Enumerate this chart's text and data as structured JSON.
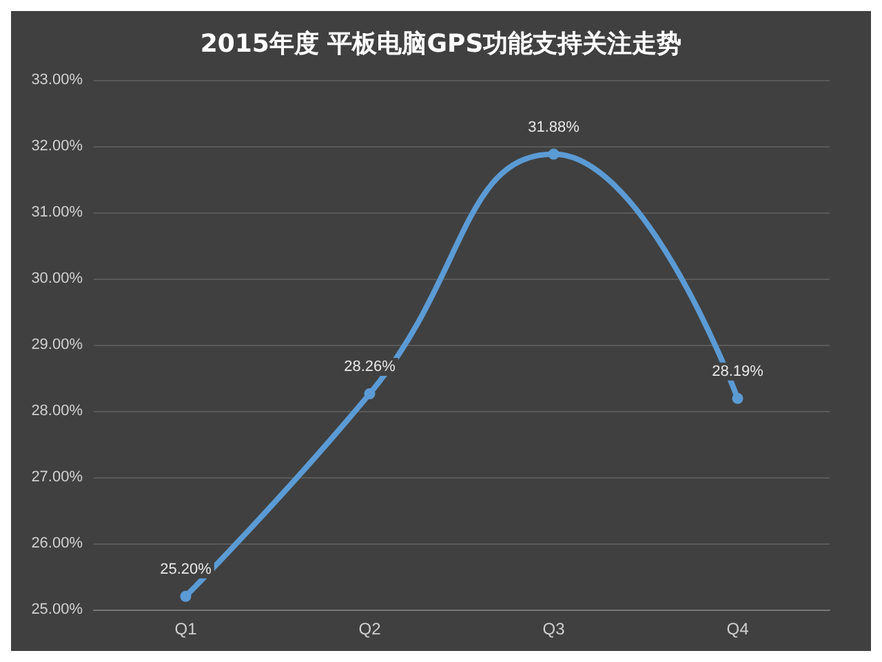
{
  "chart_data": {
    "type": "line",
    "title": "2015年度 平板电脑GPS功能支持关注走势",
    "categories": [
      "Q1",
      "Q2",
      "Q3",
      "Q4"
    ],
    "series": [
      {
        "color": "#5b9bd5",
        "values": [
          25.2,
          28.26,
          31.88,
          28.19
        ],
        "value_labels": [
          "25.20%",
          "28.26%",
          "31.88%",
          "28.19%"
        ]
      }
    ],
    "ylim": [
      25,
      33
    ],
    "yticks": [
      {
        "value": 25,
        "label": "25.00%"
      },
      {
        "value": 26,
        "label": "26.00%"
      },
      {
        "value": 27,
        "label": "27.00%"
      },
      {
        "value": 28,
        "label": "28.00%"
      },
      {
        "value": 29,
        "label": "29.00%"
      },
      {
        "value": 30,
        "label": "30.00%"
      },
      {
        "value": 31,
        "label": "31.00%"
      },
      {
        "value": 32,
        "label": "32.00%"
      },
      {
        "value": 33,
        "label": "33.00%"
      }
    ],
    "grid": "y",
    "marker": "circle",
    "line_style": "solid"
  }
}
